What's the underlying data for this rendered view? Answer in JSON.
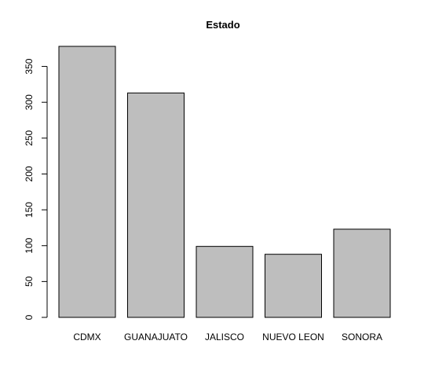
{
  "chart_data": {
    "type": "bar",
    "title": "Estado",
    "xlabel": "",
    "ylabel": "",
    "categories": [
      "CDMX",
      "GUANAJUATO",
      "JALISCO",
      "NUEVO LEON",
      "SONORA"
    ],
    "values": [
      378,
      313,
      99,
      88,
      123
    ],
    "ylim": [
      0,
      380
    ],
    "yticks": [
      0,
      50,
      100,
      150,
      200,
      250,
      300,
      350
    ],
    "grid": false,
    "legend": "none",
    "bar_color": "#bebebe",
    "edge_color": "#000000"
  }
}
